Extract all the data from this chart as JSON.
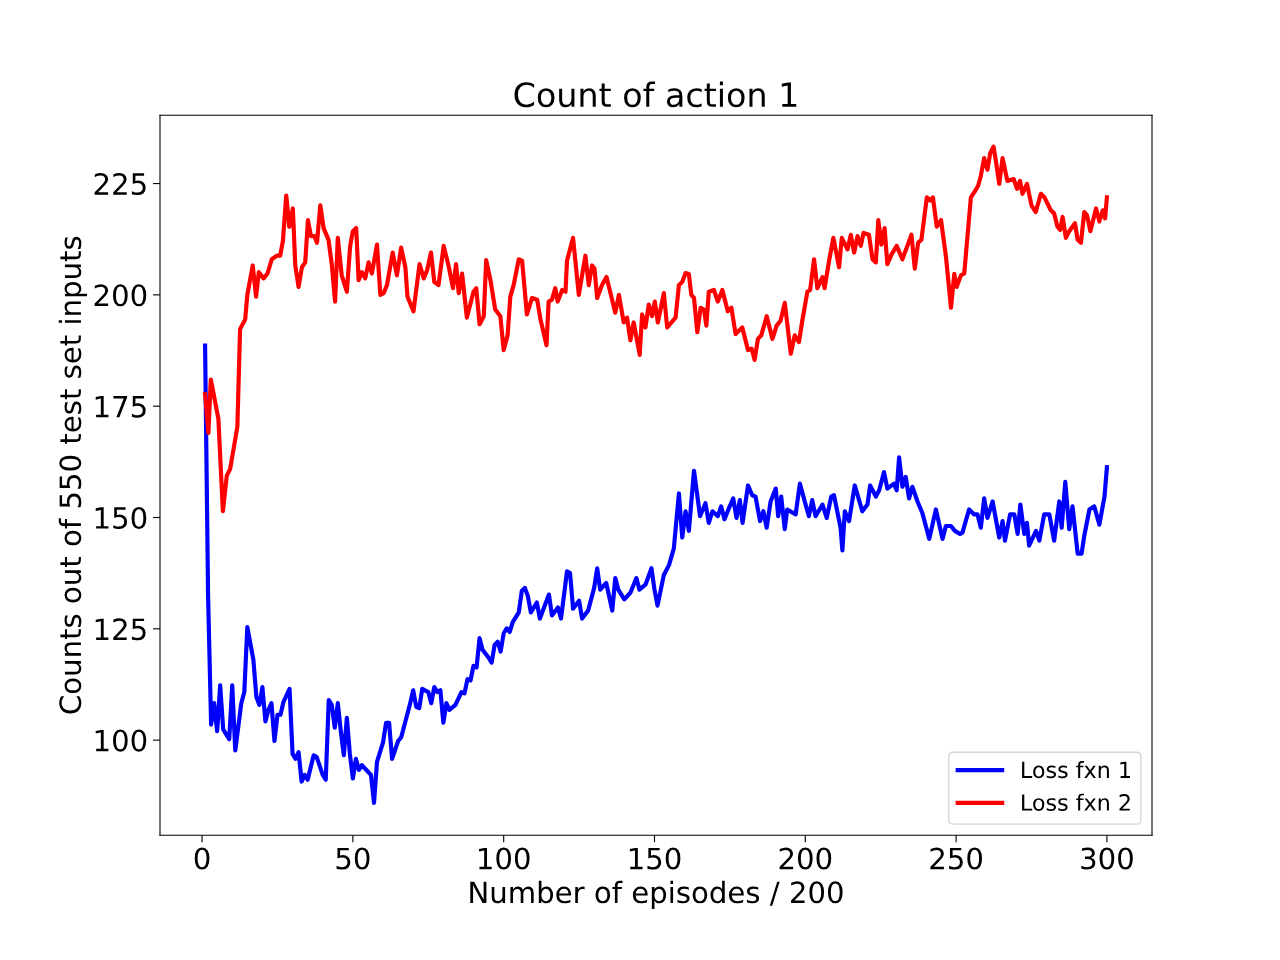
{
  "chart_data": {
    "type": "line",
    "title": "Count of action 1",
    "xlabel": "Number of episodes / 200",
    "ylabel": "Counts out of 550 test set inputs",
    "xlim": [
      -13.95,
      314.95
    ],
    "ylim": [
      78.65,
      240.35
    ],
    "xticks": [
      0,
      50,
      100,
      150,
      200,
      250,
      300
    ],
    "yticks": [
      100,
      125,
      150,
      175,
      200,
      225
    ],
    "grid": false,
    "legend": "bottom right",
    "marker": "none",
    "line_style": "solid",
    "series": [
      {
        "name": "Loss fxn 1",
        "color": "#0000ff",
        "x": [
          1,
          2,
          3,
          4,
          5,
          6,
          7,
          9,
          10,
          11,
          13,
          14,
          15,
          17,
          18,
          19,
          20,
          21,
          22,
          23,
          24,
          25,
          26,
          27,
          29,
          30,
          31,
          32,
          33,
          34,
          35,
          37,
          38,
          40,
          41,
          42,
          43,
          44,
          45,
          46,
          47,
          48,
          49,
          50,
          51,
          52,
          53,
          55,
          56,
          57,
          58,
          60,
          61,
          62,
          63,
          65,
          66,
          68,
          69,
          70,
          71,
          72,
          73,
          75,
          76,
          77,
          78,
          79,
          80,
          81,
          82,
          84,
          86,
          87,
          88,
          89,
          90,
          91,
          92,
          93,
          95,
          96,
          97,
          98,
          99,
          100,
          101,
          102,
          103,
          105,
          106,
          107,
          108,
          109,
          111,
          112,
          113,
          115,
          116,
          118,
          119,
          121,
          122,
          123,
          125,
          126,
          128,
          130,
          131,
          132,
          134,
          136,
          137,
          138,
          140,
          142,
          144,
          145,
          147,
          149,
          150,
          151,
          153.1,
          154.8,
          156.4,
          158.1,
          159.2,
          160.3,
          161.4,
          163.1,
          165.1,
          166.9,
          168.0,
          169.2,
          171.0,
          172.1,
          173.2,
          174.7,
          176.1,
          177.2,
          178.3,
          179.2,
          181.0,
          182.4,
          183.5,
          185.0,
          186.1,
          187.2,
          188.5,
          190.2,
          191.0,
          192.0,
          193.2,
          194.0,
          196.8,
          198.2,
          200.1,
          201.2,
          202.3,
          203.4,
          205.7,
          207.1,
          208.6,
          209.5,
          211.7,
          212.3,
          213.1,
          214.5,
          216.4,
          218.9,
          220.6,
          221.5,
          223.4,
          224.5,
          226.1,
          227.2,
          229.4,
          230.3,
          231.1,
          232.2,
          233.3,
          234.4,
          235.5,
          237.2,
          238.8,
          241.1,
          243.3,
          245.5,
          246.6,
          248.3,
          249.6,
          251.3,
          252.1,
          254.3,
          256.0,
          257.1,
          258.2,
          259.3,
          260.4,
          262.1,
          264.3,
          265.4,
          266.2,
          267.9,
          269.3,
          270.4,
          271.3,
          272.6,
          273.5,
          274.2,
          276.5,
          277.6,
          279.2,
          280.9,
          282.5,
          284.2,
          285.0,
          286.2,
          287.5,
          288.6,
          290.3,
          291.6,
          292.5,
          294.2,
          295.8,
          297.5,
          299.2,
          300
        ],
        "values": [
          188.6,
          132,
          103.5,
          108.3,
          102,
          112.3,
          102.4,
          100.2,
          112.3,
          97.7,
          108.3,
          110.8,
          125.4,
          118.1,
          109.7,
          107.9,
          111.9,
          104.2,
          106.8,
          108.3,
          99.8,
          105.7,
          105.7,
          108.6,
          111.5,
          96.9,
          95.8,
          97.3,
          90.7,
          92.2,
          91.1,
          96.6,
          96.2,
          92.2,
          91.1,
          109,
          107.9,
          102.8,
          108.3,
          102,
          96.6,
          105,
          96.9,
          91.4,
          95.8,
          93.3,
          94.4,
          92.9,
          92.2,
          85.9,
          95.1,
          99.5,
          103.9,
          103.9,
          95.8,
          99.8,
          100.6,
          105.7,
          108.3,
          111.2,
          107.5,
          107.2,
          111.5,
          110.8,
          108.3,
          111.9,
          110.8,
          111.2,
          103.9,
          108.3,
          106.8,
          107.9,
          110.8,
          110.5,
          113.7,
          113.4,
          116.7,
          116.3,
          122.9,
          120.3,
          118.5,
          117.4,
          121.4,
          122.1,
          119.9,
          124,
          125.1,
          124.3,
          126.5,
          128.7,
          133.5,
          134.2,
          132.4,
          128.7,
          130.9,
          127.3,
          129.1,
          132.7,
          128,
          129.8,
          127.3,
          137.9,
          137.5,
          129.5,
          131.3,
          127.3,
          129.1,
          134.2,
          138.6,
          133.8,
          135.3,
          129.1,
          136.4,
          133.8,
          131.6,
          133.1,
          136.4,
          133.8,
          134.9,
          138.6,
          133.8,
          130.2,
          137.1,
          139.3,
          143,
          155.4,
          145.5,
          151.4,
          147,
          160.5,
          150.3,
          153.2,
          148.8,
          151.4,
          150.3,
          152.5,
          149.6,
          152.1,
          154.3,
          149.9,
          153.9,
          148.8,
          157.2,
          155,
          154.7,
          149.2,
          151.4,
          147.7,
          153.6,
          156.5,
          150.3,
          154.7,
          147.4,
          151.8,
          150.7,
          157.6,
          152.9,
          150.3,
          153.9,
          150.3,
          152.9,
          149.9,
          154.7,
          155,
          147.7,
          142.6,
          151.4,
          149.2,
          157.2,
          151.4,
          152.9,
          157.2,
          154.7,
          156.1,
          160.2,
          156.5,
          157.6,
          156.1,
          163.5,
          156.9,
          159.1,
          154.3,
          156.9,
          153.6,
          151,
          145.2,
          151.8,
          145.2,
          148.1,
          148.1,
          147,
          146.3,
          146.6,
          151.8,
          150.7,
          150.7,
          147.7,
          154.3,
          149.9,
          153.6,
          145.5,
          149.2,
          144.8,
          150.7,
          150.7,
          146.3,
          152.9,
          146.3,
          148.8,
          143.7,
          147,
          144.8,
          150.7,
          150.7,
          144.8,
          153.6,
          147.7,
          158,
          147.4,
          152.5,
          141.9,
          141.9,
          145.9,
          151.8,
          152.5,
          148.4,
          154.7,
          161.3
        ]
      },
      {
        "name": "Loss fxn 2",
        "color": "#ff0000",
        "x": [
          1,
          2.1,
          2.9,
          5.4,
          6.9,
          8.2,
          9.3,
          10.6,
          11.7,
          12.6,
          14.3,
          15.0,
          16.8,
          17.9,
          18.8,
          20.4,
          21.7,
          23.1,
          24.8,
          25.9,
          26.8,
          27.9,
          28.9,
          30.1,
          30.9,
          32.0,
          33.1,
          34.2,
          35.1,
          36.1,
          37.2,
          38.1,
          39.2,
          40.3,
          41.9,
          43.0,
          44.1,
          45.0,
          46.3,
          48.0,
          49.1,
          50.0,
          51.1,
          51.9,
          53.0,
          54.1,
          55.2,
          56.3,
          58.0,
          59.1,
          60.2,
          61.3,
          63.2,
          64.6,
          66.0,
          67.4,
          68.1,
          70.1,
          72.1,
          73.5,
          74.6,
          75.9,
          77.0,
          78.4,
          80.1,
          81.7,
          83.2,
          84.2,
          85.1,
          86.2,
          87.8,
          90.0,
          90.9,
          92.0,
          93.4,
          94.2,
          95.6,
          97.2,
          98.9,
          100.0,
          101.3,
          102.2,
          103.3,
          105.0,
          106.1,
          107.7,
          109.4,
          111.1,
          112.2,
          114.2,
          114.9,
          116.0,
          117.1,
          117.9,
          119.4,
          120.5,
          121.0,
          123.0,
          124.9,
          127.1,
          128.2,
          129.3,
          130.1,
          131.0,
          132.6,
          134.1,
          137.0,
          138.2,
          139.8,
          140.9,
          142.0,
          143.1,
          145.1,
          145.9,
          147.0,
          148.1,
          149.2,
          150.1,
          151.1,
          153.1,
          154.2,
          157.0,
          158.1,
          159.2,
          160.3,
          161.4,
          162.2,
          163.1,
          164.2,
          165.3,
          166.4,
          167.2,
          168.0,
          169.7,
          171.0,
          172.5,
          174.3,
          175.5,
          176.9,
          179.1,
          181.0,
          182.2,
          183.2,
          184.3,
          185.4,
          187.2,
          189.1,
          190.5,
          191.8,
          193.2,
          195.2,
          196.5,
          197.9,
          199.0,
          200.7,
          201.6,
          202.9,
          204.0,
          205.7,
          206.4,
          207.9,
          209.3,
          211.2,
          212.1,
          214.0,
          215.1,
          216.2,
          217.3,
          218.4,
          219.3,
          221.1,
          222.3,
          223.4,
          224.2,
          225.2,
          226.3,
          227.2,
          228.6,
          230.3,
          232.2,
          235.2,
          236.3,
          237.4,
          238.5,
          240.3,
          241.4,
          242.3,
          243.6,
          245.0,
          246.6,
          248.3,
          249.4,
          250.2,
          251.6,
          252.7,
          254.9,
          256.0,
          257.3,
          258.2,
          259.3,
          260.4,
          261.3,
          262.4,
          263.2,
          264.3,
          265.4,
          267.0,
          269.1,
          270.2,
          271.2,
          272.0,
          273.5,
          275.0,
          276.4,
          278.1,
          279.2,
          281.4,
          282.5,
          283.6,
          284.5,
          285.3,
          286.4,
          287.5,
          289.4,
          290.3,
          291.4,
          292.5,
          293.4,
          294.5,
          296.4,
          297.5,
          298.6,
          299.4,
          300
        ],
        "values": [
          177.7,
          169,
          181,
          172.2,
          151.4,
          159.4,
          160.9,
          166,
          170.4,
          192.3,
          194.5,
          200,
          206.6,
          199.6,
          205.1,
          203.7,
          204.8,
          208,
          208.8,
          208.8,
          212.1,
          222.3,
          215.3,
          219.4,
          206.6,
          201.8,
          206.2,
          207.3,
          216.8,
          213.2,
          213.2,
          211.7,
          220.1,
          215,
          212.4,
          206.9,
          198.5,
          212.8,
          204.4,
          200.7,
          211,
          214.3,
          215,
          203.3,
          205.1,
          203.7,
          207.3,
          204.8,
          211.3,
          200,
          200.4,
          202.2,
          209.5,
          204.4,
          210.6,
          206.2,
          199.6,
          196.3,
          206.9,
          203.7,
          205.5,
          209.5,
          202.9,
          202.2,
          211,
          206.6,
          201.5,
          206.9,
          200.4,
          204.8,
          194.9,
          200.7,
          201.5,
          193.4,
          195.2,
          207.8,
          203.3,
          196.7,
          195.2,
          187.6,
          190.9,
          199.6,
          202.2,
          208,
          207.7,
          195.6,
          199.3,
          198.9,
          194.5,
          188.7,
          198.5,
          198.9,
          201.5,
          198.5,
          201.1,
          200.7,
          207.7,
          212.8,
          200,
          208.8,
          202.2,
          206.6,
          205.9,
          199.3,
          202.2,
          204,
          196,
          200,
          193.8,
          194.9,
          189.8,
          193.8,
          186.5,
          195.6,
          192.7,
          197.8,
          195.2,
          198.5,
          193.8,
          200.4,
          192.7,
          194.9,
          202.2,
          202.9,
          204.9,
          204.7,
          200,
          199.3,
          191.6,
          197.1,
          196.7,
          193.1,
          200.7,
          201.1,
          198.5,
          201.1,
          196.3,
          197.1,
          191.2,
          192.7,
          187.6,
          187.9,
          185.4,
          190.1,
          190.9,
          195.2,
          190.1,
          193.1,
          194.2,
          198.2,
          186.8,
          190.9,
          189.4,
          194.2,
          200.7,
          201.1,
          208,
          201.5,
          204,
          201.5,
          207.7,
          212.8,
          206.2,
          212.8,
          210.2,
          213.5,
          209.5,
          213.2,
          211,
          213.9,
          213.5,
          208,
          207.3,
          216.8,
          211.3,
          215,
          206.9,
          209.1,
          211,
          208,
          213.5,
          205.9,
          211.7,
          212.4,
          221.9,
          221.2,
          221.9,
          215.3,
          216.8,
          208.8,
          197.1,
          204.7,
          201.8,
          204.4,
          204.8,
          221.9,
          223,
          224.5,
          226.7,
          230.7,
          228.1,
          231.8,
          233.3,
          230,
          224.9,
          230.7,
          225.6,
          226,
          223.8,
          225.6,
          222.7,
          224.9,
          220.1,
          218.6,
          222.7,
          222,
          219,
          218.3,
          215.3,
          214.6,
          217.5,
          212.8,
          214.3,
          216.1,
          212.4,
          211.7,
          218.6,
          217.9,
          214.3,
          219.4,
          216.5,
          219,
          217.2,
          221.9
        ]
      }
    ]
  }
}
